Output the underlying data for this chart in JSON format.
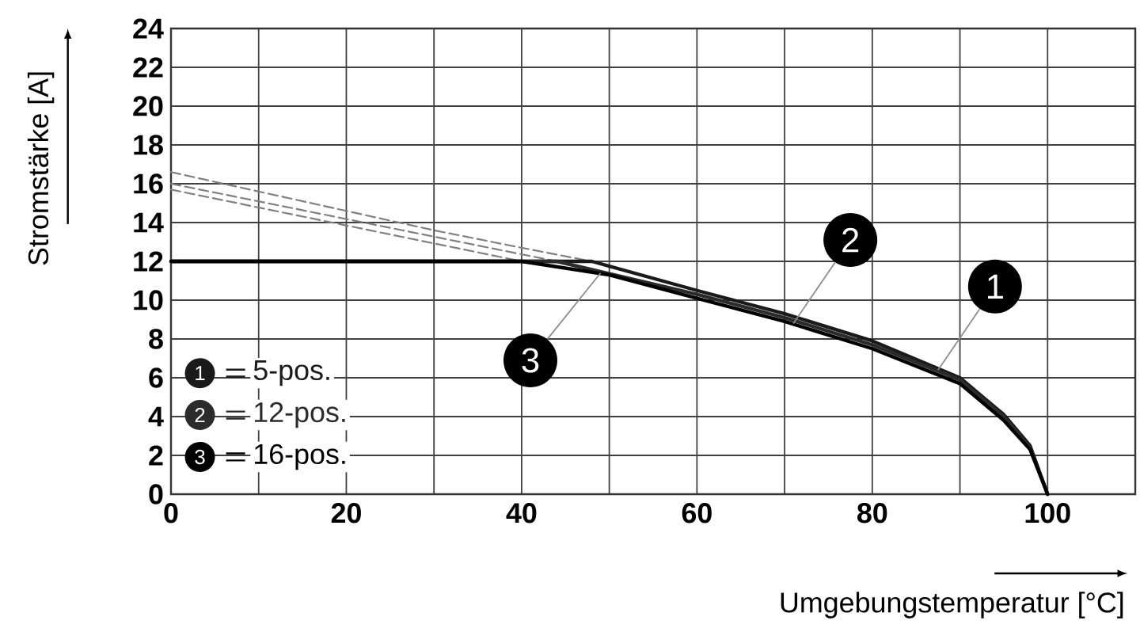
{
  "chart_data": {
    "type": "line",
    "xlabel": "Umgebungstemperatur [°C]",
    "ylabel": "Stromstärke [A]",
    "xlim": [
      0,
      110
    ],
    "ylim": [
      0,
      24
    ],
    "xticks": [
      0,
      {
        "value": 10,
        "label": null
      },
      20,
      {
        "value": 30,
        "label": null
      },
      40,
      {
        "value": 50,
        "label": null
      },
      60,
      {
        "value": 70,
        "label": null
      },
      80,
      {
        "value": 90,
        "label": null
      },
      100
    ],
    "yticks": [
      0,
      2,
      4,
      6,
      8,
      10,
      12,
      14,
      16,
      18,
      20,
      22,
      24
    ],
    "grid": true,
    "legend": "bottom left",
    "marker": "none",
    "series": [
      {
        "x": [
          0,
          10,
          20,
          30,
          40,
          48
        ],
        "values": [
          16.6,
          15.6,
          14.6,
          13.6,
          12.7,
          12
        ],
        "color": "#808080",
        "line_style": "dashed"
      },
      {
        "x": [
          0,
          44
        ],
        "values": [
          16.0,
          12
        ],
        "color": "#808080",
        "line_style": "dashed"
      },
      {
        "x": [
          0,
          40
        ],
        "values": [
          15.7,
          12
        ],
        "color": "#808080",
        "line_style": "dashed"
      },
      {
        "name": "5-pos.",
        "x": [
          0,
          48,
          60,
          70,
          80,
          90,
          95,
          98,
          100
        ],
        "values": [
          12,
          12,
          10.5,
          9.3,
          7.9,
          6.0,
          4.1,
          2.5,
          0
        ],
        "color": "#1a1a1a",
        "line_style": "solid"
      },
      {
        "name": "12-pos.",
        "x": [
          0,
          44,
          60,
          70,
          80,
          90,
          95,
          98,
          100
        ],
        "values": [
          12,
          12,
          10.3,
          9.1,
          7.7,
          5.9,
          4.0,
          2.4,
          0
        ],
        "color": "#2b2b2b",
        "line_style": "solid"
      },
      {
        "name": "16-pos.",
        "x": [
          0,
          40,
          50,
          60,
          70,
          80,
          90,
          95,
          98,
          100
        ],
        "values": [
          12,
          12,
          11.3,
          10.1,
          8.9,
          7.5,
          5.7,
          3.8,
          2.3,
          0
        ],
        "color": "#000000",
        "line_style": "solid"
      }
    ],
    "annotations": [
      {
        "text": "1",
        "x": 87.5,
        "y": 6.4
      },
      {
        "text": "2",
        "x": 71,
        "y": 8.8
      },
      {
        "text": "3",
        "x": 49,
        "y": 11.4
      }
    ]
  }
}
